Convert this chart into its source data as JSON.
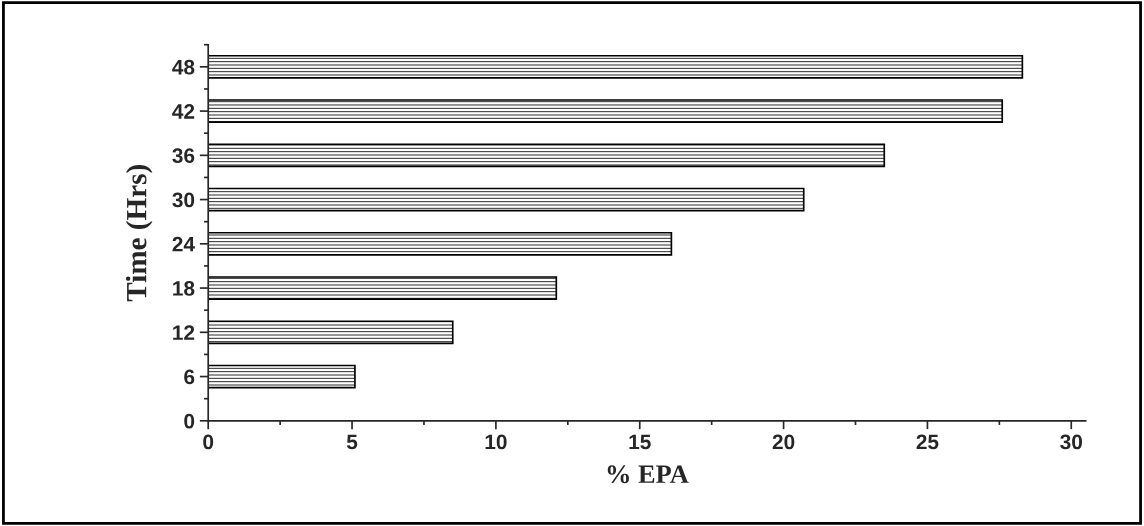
{
  "chart_data": {
    "type": "bar",
    "orientation": "horizontal",
    "xlabel": "% EPA",
    "ylabel": "Time (Hrs)",
    "categories": [
      "48",
      "42",
      "36",
      "30",
      "24",
      "18",
      "12",
      "6",
      "0"
    ],
    "values": [
      28.3,
      27.6,
      23.5,
      20.7,
      16.1,
      12.1,
      8.5,
      5.1,
      null
    ],
    "color": "#000000",
    "xlim": [
      0,
      30.5
    ],
    "xticks": [
      0,
      5,
      10,
      15,
      20,
      25,
      30
    ],
    "grid": false,
    "legend": false
  }
}
